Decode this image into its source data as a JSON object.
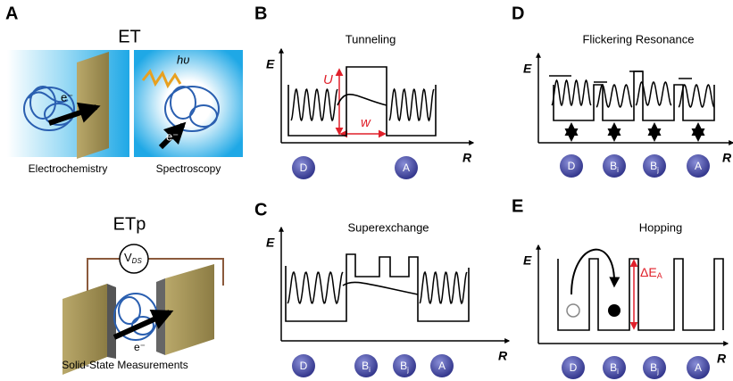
{
  "panel_a": {
    "letter": "A",
    "title": "ET",
    "left_caption": "Electrochemistry",
    "right_caption": "Spectroscopy",
    "photon": "hυ",
    "electron_left": "e⁻",
    "electron_right": "e⁻",
    "etp_title": "ETp",
    "voltage": "V",
    "voltage_sub": "DS",
    "electron_bottom": "e⁻",
    "caption": "Solid-State Measurements"
  },
  "panel_b": {
    "letter": "B",
    "title": "Tunneling",
    "y_label": "E",
    "x_label": "R",
    "barrier_height": "U",
    "barrier_width": "w",
    "sites": [
      {
        "label": "D"
      },
      {
        "label": "A"
      }
    ]
  },
  "panel_c": {
    "letter": "C",
    "title": "Superexchange",
    "y_label": "E",
    "x_label": "R",
    "sites": [
      {
        "label": "D"
      },
      {
        "label": "B",
        "sub": "i"
      },
      {
        "label": "B",
        "sub": "j"
      },
      {
        "label": "A"
      }
    ]
  },
  "panel_d": {
    "letter": "D",
    "title": "Flickering Resonance",
    "y_label": "E",
    "x_label": "R",
    "sites": [
      {
        "label": "D"
      },
      {
        "label": "B",
        "sub": "i"
      },
      {
        "label": "B",
        "sub": "j"
      },
      {
        "label": "A"
      }
    ]
  },
  "panel_e": {
    "letter": "E",
    "title": "Hopping",
    "y_label": "E",
    "x_label": "R",
    "activation": "ΔE",
    "activation_sub": "A",
    "sites": [
      {
        "label": "D"
      },
      {
        "label": "B",
        "sub": "i"
      },
      {
        "label": "B",
        "sub": "j"
      },
      {
        "label": "A"
      }
    ]
  }
}
